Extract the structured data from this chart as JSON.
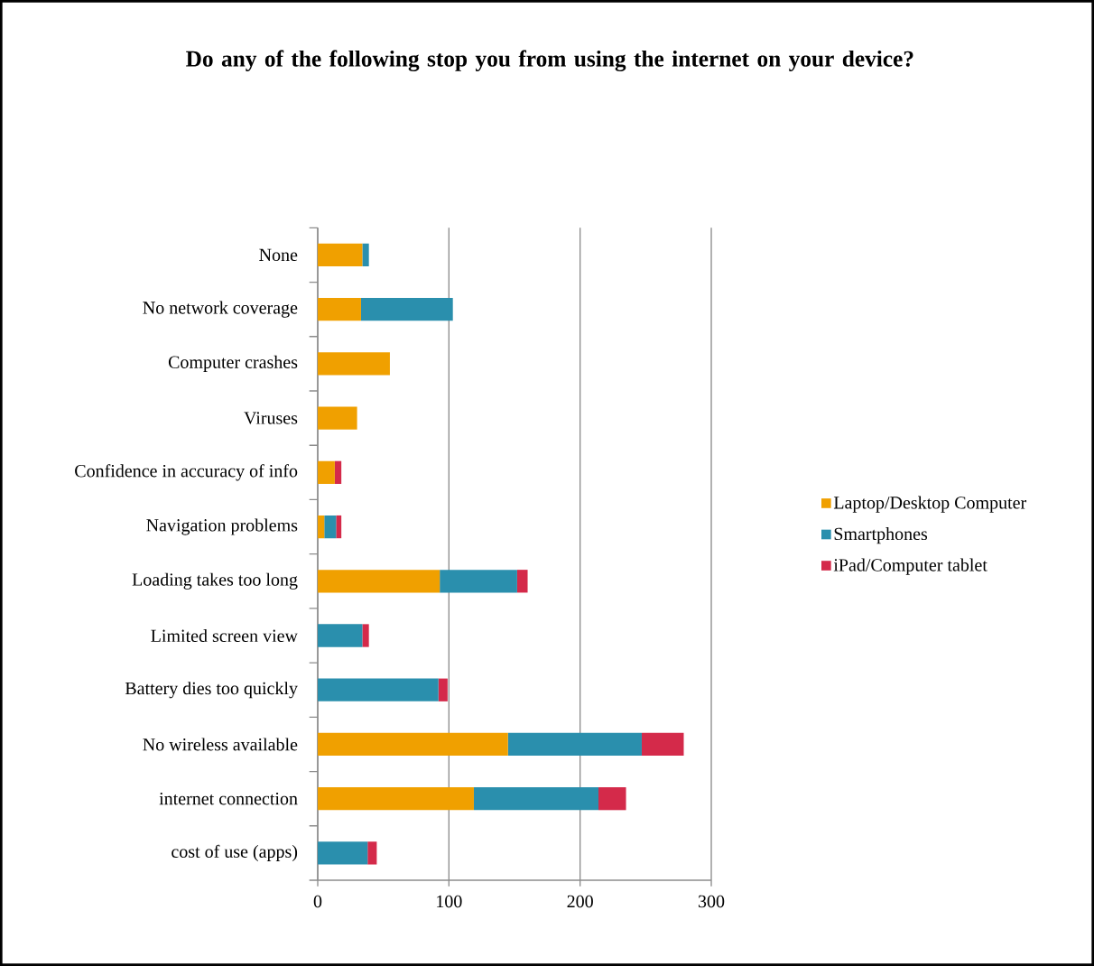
{
  "chart_data": {
    "type": "bar",
    "orientation": "horizontal",
    "stacked": true,
    "title": "Do any of the following stop you from using the internet on your device?",
    "categories": [
      "None",
      "No network coverage",
      "Computer crashes",
      "Viruses",
      "Confidence in accuracy of info",
      "Navigation problems",
      "Loading takes too long",
      "Limited screen view",
      "Battery dies too quickly",
      "No wireless available",
      "internet connection",
      "cost of use (apps)"
    ],
    "series": [
      {
        "name": "Laptop/Desktop Computer",
        "color": "#f0a000",
        "values": [
          34,
          33,
          55,
          30,
          13,
          5,
          93,
          0,
          0,
          145,
          119,
          0
        ]
      },
      {
        "name": "Smartphones",
        "color": "#2a8fad",
        "values": [
          5,
          70,
          0,
          0,
          0,
          9,
          59,
          34,
          92,
          102,
          95,
          38
        ]
      },
      {
        "name": "iPad/Computer tablet",
        "color": "#d42a4a",
        "values": [
          0,
          0,
          0,
          0,
          5,
          4,
          8,
          5,
          7,
          32,
          21,
          7
        ]
      }
    ],
    "xlim": [
      0,
      300
    ],
    "xticks": [
      0,
      100,
      200,
      300
    ],
    "grid": "x",
    "legend": "right"
  }
}
